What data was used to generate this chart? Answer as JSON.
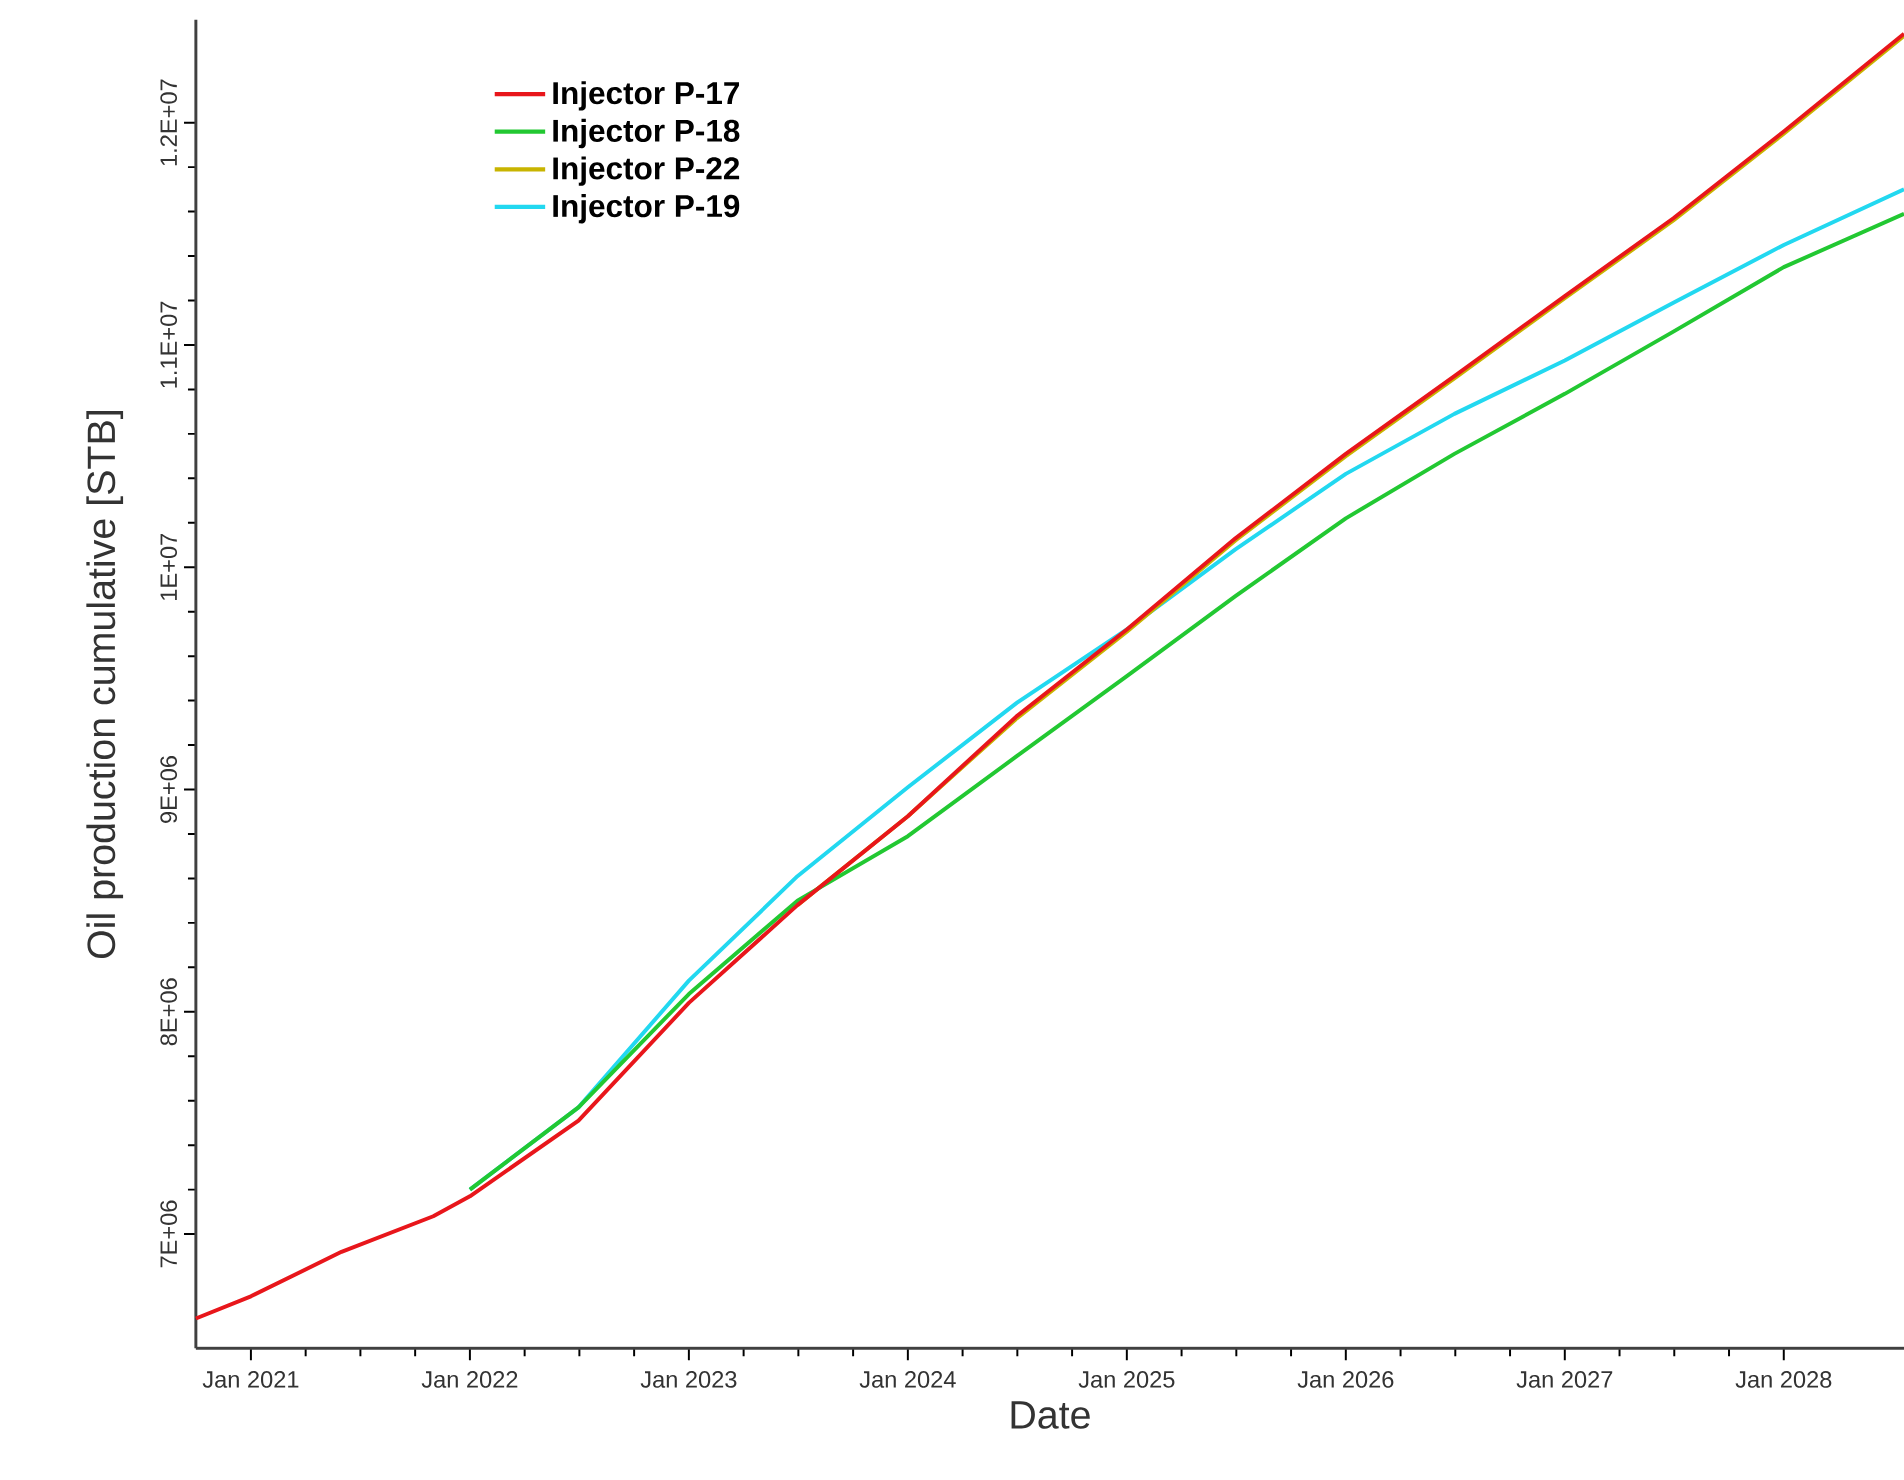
{
  "chart_data": {
    "type": "line",
    "xlabel": "Date",
    "ylabel": "Oil production cumulative [STB]",
    "xlim": [
      "2020-10-01",
      "2028-07-20"
    ],
    "xticks": [
      {
        "value": "2021-01-01",
        "label": "Jan 2021"
      },
      {
        "value": "2022-01-01",
        "label": "Jan 2022"
      },
      {
        "value": "2023-01-01",
        "label": "Jan 2023"
      },
      {
        "value": "2024-01-01",
        "label": "Jan 2024"
      },
      {
        "value": "2025-01-01",
        "label": "Jan 2025"
      },
      {
        "value": "2026-01-01",
        "label": "Jan 2026"
      },
      {
        "value": "2027-01-01",
        "label": "Jan 2027"
      },
      {
        "value": "2028-01-01",
        "label": "Jan 2028"
      }
    ],
    "ylim": [
      6486000,
      12463000
    ],
    "yticks": [
      {
        "value": 7000000,
        "label": "7E+06"
      },
      {
        "value": 8000000,
        "label": "8E+06"
      },
      {
        "value": 9000000,
        "label": "9E+06"
      },
      {
        "value": 10000000,
        "label": "1E+07"
      },
      {
        "value": 11000000,
        "label": "1.1E+07"
      },
      {
        "value": 12000000,
        "label": "1.2E+07"
      }
    ],
    "legend": "top left",
    "grid": false,
    "marker": "none",
    "line_style": "solid",
    "series": [
      {
        "name": "Injector P-17",
        "color": "#e8161b",
        "x": [
          "2020-10-01",
          "2021-01-01",
          "2021-06-01",
          "2021-11-01",
          "2022-01-01",
          "2022-07-01",
          "2023-01-01",
          "2023-07-01",
          "2024-01-01",
          "2024-07-01",
          "2025-01-01",
          "2025-07-01",
          "2026-01-01",
          "2026-07-01",
          "2027-01-01",
          "2027-07-01",
          "2028-01-01",
          "2028-07-20"
        ],
        "values": [
          6620000,
          6720000,
          6920000,
          7080000,
          7170000,
          7510000,
          8040000,
          8480000,
          8880000,
          9330000,
          9720000,
          10130000,
          10510000,
          10860000,
          11220000,
          11570000,
          11960000,
          12400000
        ]
      },
      {
        "name": "Injector P-18",
        "color": "#22c832",
        "x": [
          "2022-01-01",
          "2022-07-01",
          "2023-01-01",
          "2023-07-01",
          "2024-01-01",
          "2024-07-01",
          "2025-01-01",
          "2025-07-01",
          "2026-01-01",
          "2026-07-01",
          "2027-01-01",
          "2027-07-01",
          "2028-01-01",
          "2028-07-20"
        ],
        "values": [
          7200000,
          7570000,
          8080000,
          8500000,
          8790000,
          9150000,
          9510000,
          9870000,
          10220000,
          10510000,
          10780000,
          11060000,
          11350000,
          11590000
        ]
      },
      {
        "name": "Injector P-22",
        "color": "#c8b400",
        "x": [
          "2023-07-01",
          "2024-01-01",
          "2024-07-01",
          "2025-01-01",
          "2025-07-01",
          "2026-01-01",
          "2026-07-01",
          "2027-01-01",
          "2027-07-01",
          "2028-01-01",
          "2028-07-20"
        ],
        "values": [
          8480000,
          8880000,
          9320000,
          9710000,
          10120000,
          10500000,
          10850000,
          11210000,
          11560000,
          11950000,
          12390000
        ]
      },
      {
        "name": "Injector P-19",
        "color": "#22d8f0",
        "x": [
          "2022-01-01",
          "2022-07-01",
          "2023-01-01",
          "2023-07-01",
          "2024-01-01",
          "2024-07-01",
          "2025-01-01",
          "2025-07-01",
          "2026-01-01",
          "2026-07-01",
          "2027-01-01",
          "2027-07-01",
          "2028-01-01",
          "2028-07-20"
        ],
        "values": [
          7200000,
          7570000,
          8140000,
          8610000,
          9010000,
          9390000,
          9720000,
          10080000,
          10420000,
          10690000,
          10930000,
          11190000,
          11450000,
          11700000
        ]
      }
    ]
  }
}
